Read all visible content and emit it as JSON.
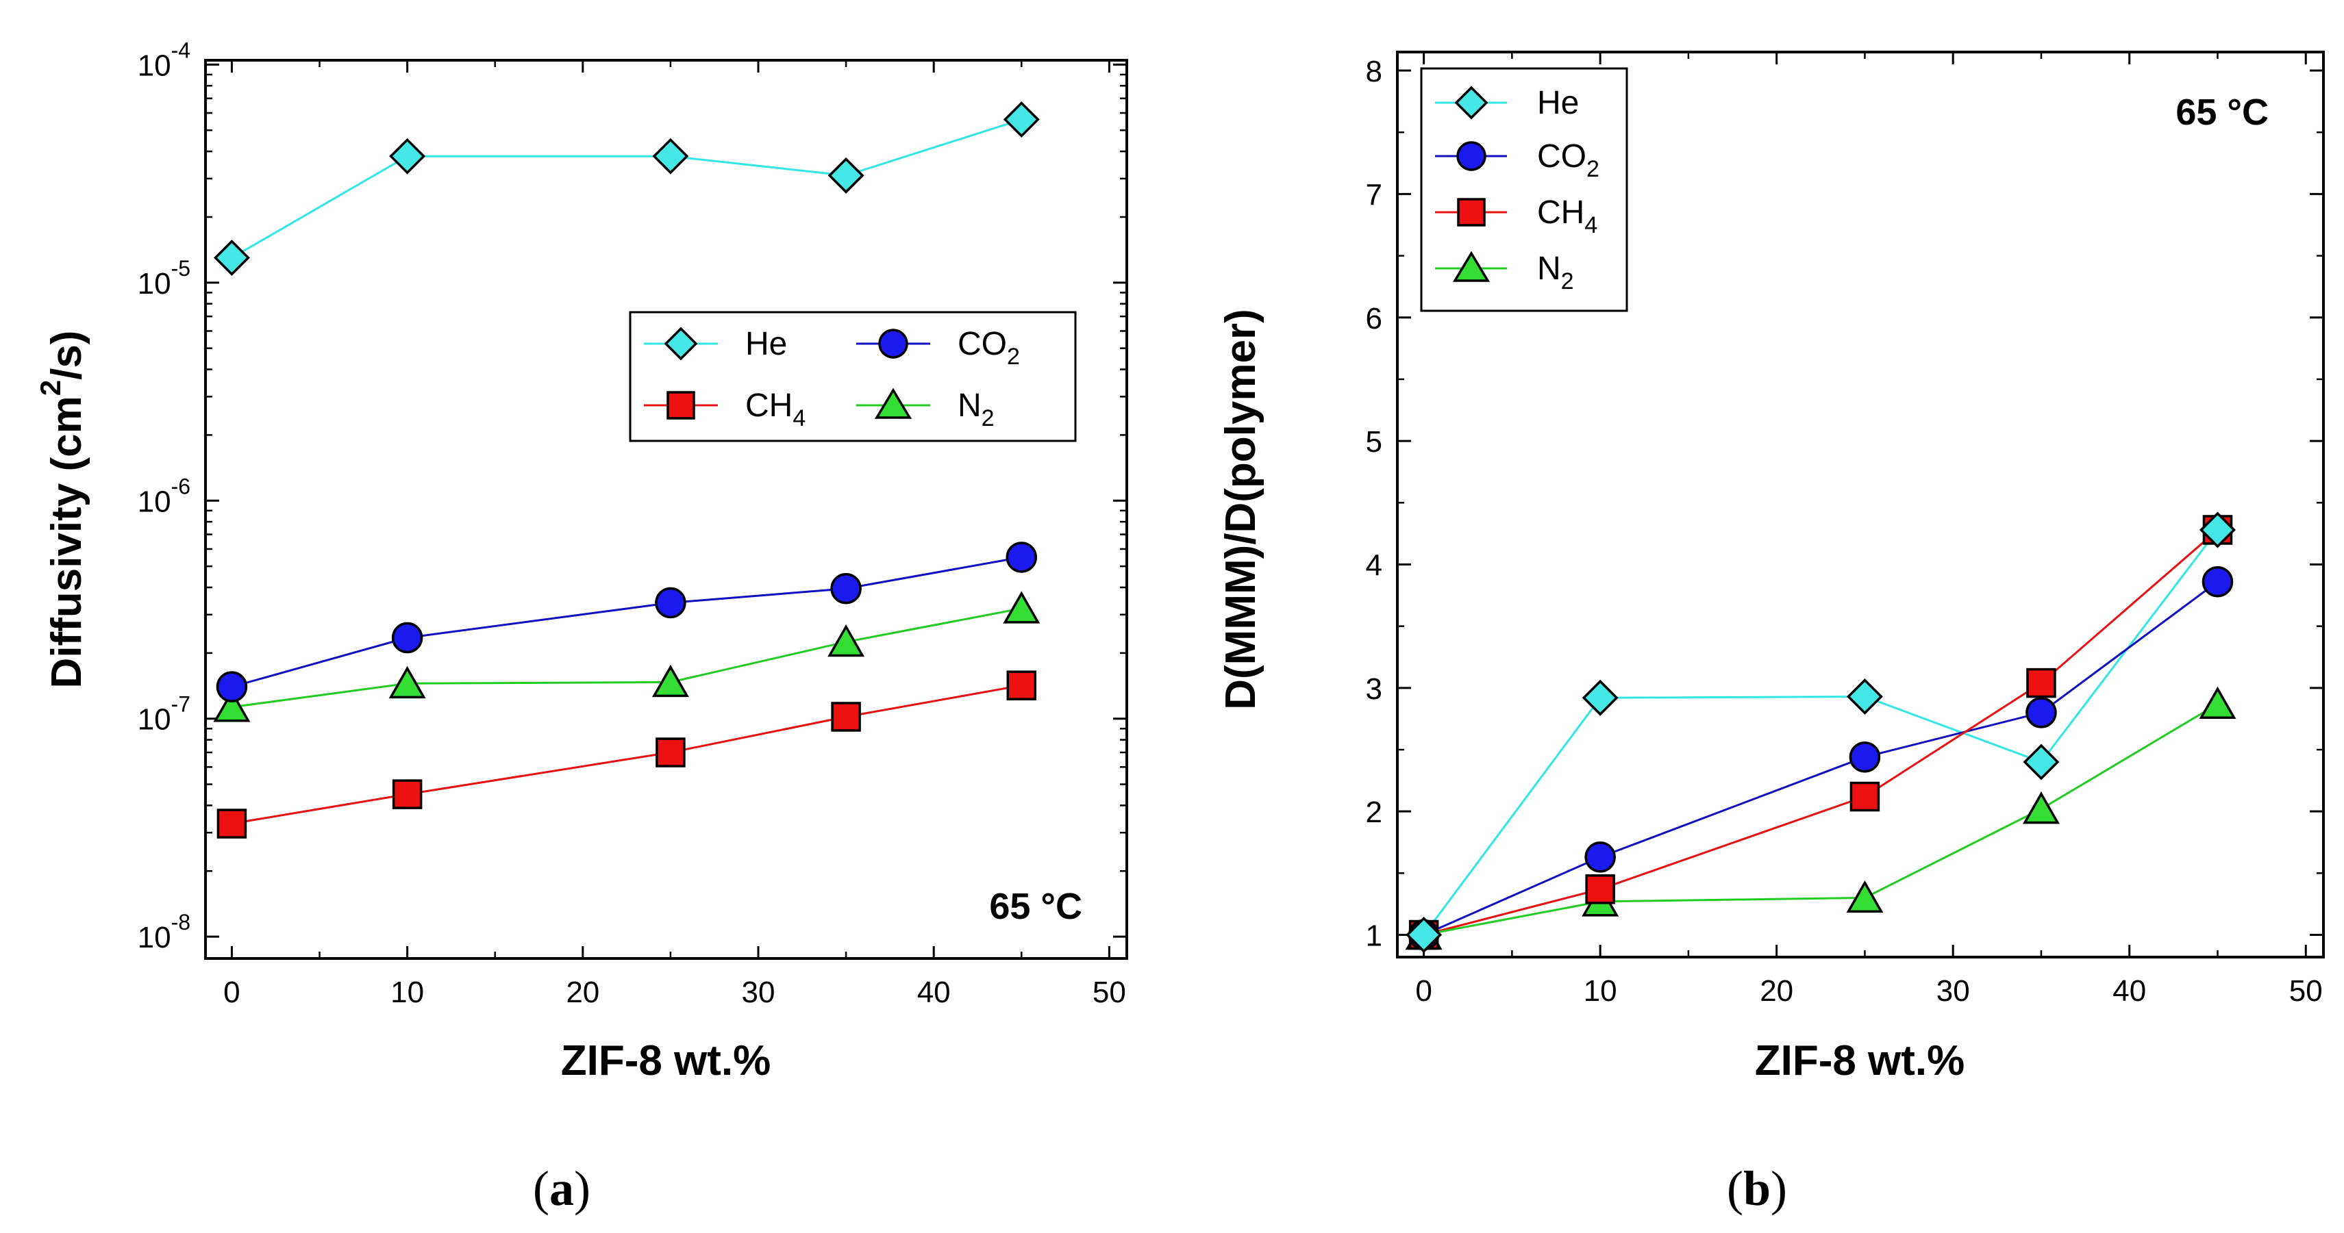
{
  "chart_data": [
    {
      "id": "a",
      "type": "line",
      "caption_open": "(",
      "caption_letter": "a",
      "caption_close": ")",
      "xlabel": "ZIF-8 wt.%",
      "ylabel_main": "Diffusivity (cm",
      "ylabel_sup": "2",
      "ylabel_end": "/s)",
      "yscale": "log",
      "xlim": [
        -1.5,
        51
      ],
      "ylim_exp": [
        -8.1,
        -3.98
      ],
      "xticks": [
        "0",
        "10",
        "20",
        "30",
        "40",
        "50"
      ],
      "xtick_values": [
        0,
        10,
        20,
        30,
        40,
        50
      ],
      "ytick_exponents": [
        -8,
        -7,
        -6,
        -5,
        -4
      ],
      "ytick_labels": [
        {
          "base": "10",
          "exp": "-8"
        },
        {
          "base": "10",
          "exp": "-7"
        },
        {
          "base": "10",
          "exp": "-6"
        },
        {
          "base": "10",
          "exp": "-5"
        },
        {
          "base": "10",
          "exp": "-4"
        }
      ],
      "annotation": "65 °C",
      "legend_position": "right-upper",
      "series": [
        {
          "key": "he",
          "name": "He",
          "sub": "",
          "marker": "diamond",
          "line_color": "#33e6e6",
          "fill": "#44e6e6",
          "x": [
            0,
            10,
            25,
            35,
            45
          ],
          "y": [
            1.3e-05,
            3.8e-05,
            3.8e-05,
            3.1e-05,
            5.6e-05
          ]
        },
        {
          "key": "co2",
          "name": "CO",
          "sub": "2",
          "marker": "circle",
          "line_color": "#1010c0",
          "fill": "#1a1aee",
          "x": [
            0,
            10,
            25,
            35,
            45
          ],
          "y": [
            1.4e-07,
            2.35e-07,
            3.4e-07,
            3.95e-07,
            5.5e-07
          ]
        },
        {
          "key": "ch4",
          "name": "CH",
          "sub": "4",
          "marker": "square",
          "line_color": "#e81010",
          "fill": "#ee1111",
          "x": [
            0,
            10,
            25,
            35,
            45
          ],
          "y": [
            3.3e-08,
            4.5e-08,
            7e-08,
            1.02e-07,
            1.42e-07
          ]
        },
        {
          "key": "n2",
          "name": "N",
          "sub": "2",
          "marker": "triangle",
          "line_color": "#22cc22",
          "fill": "#33dd33",
          "x": [
            0,
            10,
            25,
            35,
            45
          ],
          "y": [
            1.13e-07,
            1.45e-07,
            1.47e-07,
            2.25e-07,
            3.2e-07
          ]
        }
      ]
    },
    {
      "id": "b",
      "type": "line",
      "caption_open": "(",
      "caption_letter": "b",
      "caption_close": ")",
      "xlabel": "ZIF-8 wt.%",
      "ylabel": "D(MMM)/D(polymer)",
      "yscale": "linear",
      "xlim": [
        -1.5,
        51
      ],
      "ylim": [
        0.82,
        8.15
      ],
      "xticks": [
        "0",
        "10",
        "20",
        "30",
        "40",
        "50"
      ],
      "xtick_values": [
        0,
        10,
        20,
        30,
        40,
        50
      ],
      "yticks": [
        "1",
        "2",
        "3",
        "4",
        "5",
        "6",
        "7",
        "8"
      ],
      "ytick_values": [
        1,
        2,
        3,
        4,
        5,
        6,
        7,
        8
      ],
      "annotation": "65 °C",
      "legend_position": "top-left",
      "series": [
        {
          "key": "he",
          "name": "He",
          "sub": "",
          "marker": "diamond",
          "line_color": "#33e6e6",
          "fill": "#44e6e6",
          "x": [
            0,
            10,
            25,
            35,
            45
          ],
          "y": [
            1.0,
            2.92,
            2.93,
            2.4,
            4.28
          ]
        },
        {
          "key": "co2",
          "name": "CO",
          "sub": "2",
          "marker": "circle",
          "line_color": "#1010c0",
          "fill": "#1a1aee",
          "x": [
            0,
            10,
            25,
            35,
            45
          ],
          "y": [
            1.0,
            1.63,
            2.44,
            2.8,
            3.86
          ]
        },
        {
          "key": "ch4",
          "name": "CH",
          "sub": "4",
          "marker": "square",
          "line_color": "#e81010",
          "fill": "#ee1111",
          "x": [
            0,
            10,
            25,
            35,
            45
          ],
          "y": [
            1.0,
            1.37,
            2.12,
            3.04,
            4.28
          ]
        },
        {
          "key": "n2",
          "name": "N",
          "sub": "2",
          "marker": "triangle",
          "line_color": "#22cc22",
          "fill": "#33dd33",
          "x": [
            0,
            10,
            25,
            35,
            45
          ],
          "y": [
            1.0,
            1.27,
            1.3,
            2.02,
            2.87
          ]
        }
      ]
    }
  ]
}
